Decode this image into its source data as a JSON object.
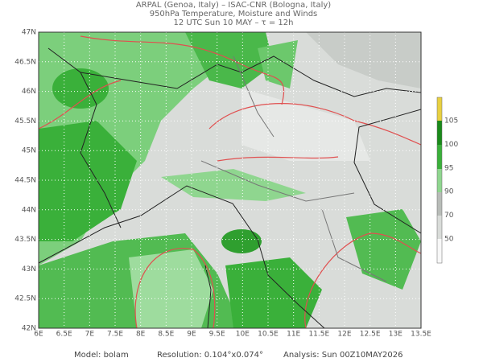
{
  "header": {
    "line1": "ARPAL (Genoa, Italy)  –  ISAC-CNR (Bologna, Italy)",
    "line2": "950hPa Temperature, Moisture and Winds",
    "line3": "12 UTC Sun 10 MAY  –  τ = 12h"
  },
  "map": {
    "lat_labels": [
      "47N",
      "46.5N",
      "46N",
      "45.5N",
      "45N",
      "44.5N",
      "44N",
      "43.5N",
      "43N",
      "42.5N",
      "42N"
    ],
    "lon_labels": [
      "6E",
      "6.5E",
      "7E",
      "7.5E",
      "8E",
      "8.5E",
      "9E",
      "9.5E",
      "10E",
      "10.5E",
      "11E",
      "11.5E",
      "12E",
      "12.5E",
      "13E",
      "13.5E"
    ]
  },
  "colorbar": {
    "labels": [
      "105",
      "100",
      "95",
      "90",
      "70",
      "50"
    ]
  },
  "footer": {
    "model": "Model: bolam",
    "resolution": "Resolution: 0.104°x0.074°",
    "analysis": "Analysis: Sun 00Z10MAY2026"
  }
}
